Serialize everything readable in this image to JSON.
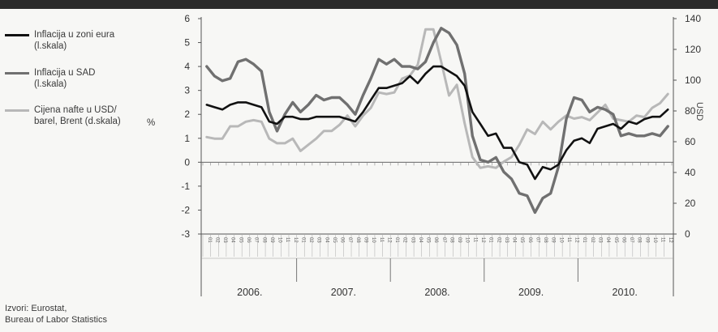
{
  "chart_data": {
    "type": "line",
    "title": "",
    "ylabel_left": "%",
    "ylabel_right": "USD",
    "ylim_left": [
      -3,
      6
    ],
    "ylim_right": [
      0,
      140
    ],
    "yticks_left": [
      "6",
      "5",
      "4",
      "3",
      "2",
      "1",
      "0",
      "-1",
      "-2",
      "-3"
    ],
    "yticks_right": [
      "140",
      "120",
      "100",
      "80",
      "60",
      "40",
      "20",
      "0"
    ],
    "years": [
      "2006.",
      "2007.",
      "2008.",
      "2009.",
      "2010."
    ],
    "month_labels": [
      "01",
      "02",
      "03",
      "04",
      "05",
      "06",
      "07",
      "08",
      "09",
      "10",
      "11",
      "12"
    ],
    "grid": false,
    "legend_placement": "left",
    "series": [
      {
        "name": "Inflacija u zoni eura (l.skala)",
        "axis": "left",
        "color": "#111111",
        "values": [
          2.4,
          2.3,
          2.2,
          2.4,
          2.5,
          2.5,
          2.4,
          2.3,
          1.7,
          1.6,
          1.9,
          1.9,
          1.8,
          1.8,
          1.9,
          1.9,
          1.9,
          1.9,
          1.8,
          1.7,
          2.1,
          2.6,
          3.1,
          3.1,
          3.2,
          3.3,
          3.6,
          3.3,
          3.7,
          4.0,
          4.0,
          3.8,
          3.6,
          3.2,
          2.1,
          1.6,
          1.1,
          1.2,
          0.6,
          0.6,
          0.0,
          -0.1,
          -0.7,
          -0.2,
          -0.3,
          -0.1,
          0.5,
          0.9,
          1.0,
          0.8,
          1.4,
          1.5,
          1.6,
          1.4,
          1.7,
          1.6,
          1.8,
          1.9,
          1.9,
          2.2
        ]
      },
      {
        "name": "Inflacija u SAD (l.skala)",
        "axis": "left",
        "color": "#707070",
        "values": [
          4.0,
          3.6,
          3.4,
          3.5,
          4.2,
          4.3,
          4.1,
          3.8,
          2.1,
          1.3,
          2.0,
          2.5,
          2.1,
          2.4,
          2.8,
          2.6,
          2.7,
          2.7,
          2.4,
          2.0,
          2.8,
          3.5,
          4.3,
          4.1,
          4.3,
          4.0,
          4.0,
          3.9,
          4.2,
          5.0,
          5.6,
          5.4,
          4.9,
          3.7,
          1.1,
          0.1,
          0.0,
          0.2,
          -0.4,
          -0.7,
          -1.3,
          -1.4,
          -2.1,
          -1.5,
          -1.3,
          -0.2,
          1.8,
          2.7,
          2.6,
          2.1,
          2.3,
          2.2,
          2.0,
          1.1,
          1.2,
          1.1,
          1.1,
          1.2,
          1.1,
          1.5
        ]
      },
      {
        "name": "Cijena nafte u USD/ barel, Brent (d.skala)",
        "axis": "right",
        "color": "#b8b8b8",
        "values": [
          63,
          62,
          62,
          70,
          70,
          73,
          74,
          73,
          62,
          59,
          59,
          62,
          54,
          58,
          62,
          67,
          67,
          71,
          77,
          70,
          77,
          82,
          92,
          91,
          92,
          101,
          103,
          110,
          133,
          133,
          112,
          90,
          97,
          72,
          50,
          43,
          44,
          43,
          47,
          50,
          58,
          68,
          65,
          73,
          68,
          73,
          77,
          75,
          76,
          74,
          79,
          84,
          75,
          74,
          73,
          77,
          76,
          82,
          85,
          91
        ]
      }
    ]
  },
  "legend": {
    "item1": "Inflacija u zoni eura\n(l.skala)",
    "item2": "Inflacija u SAD\n(l.skala)",
    "item3": "Cijena nafte u USD/\nbarel, Brent (d.skala)"
  },
  "pct_label": "%",
  "right_unit": "USD",
  "source": "Izvori: Eurostat,\nBureau of Labor Statistics"
}
